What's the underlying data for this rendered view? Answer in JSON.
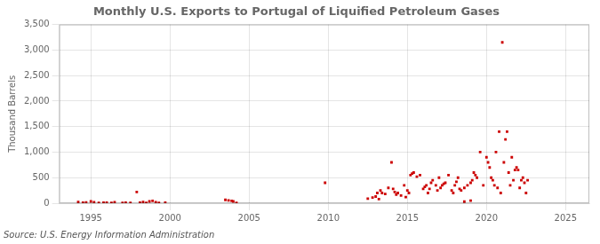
{
  "chart_data": {
    "type": "scatter",
    "title": "Monthly U.S. Exports to Portugal of Liquified Petroleum Gases",
    "ylabel": "Thousand Barrels",
    "annotation": "Source: U.S. Energy Information Administration",
    "color": "#cc0000",
    "marker": "square",
    "grid": true,
    "xlim": [
      1993.0,
      2026.5
    ],
    "xticks": [
      1995,
      2000,
      2005,
      2010,
      2015,
      2020,
      2025
    ],
    "ylim": [
      0,
      3500
    ],
    "yticks": [
      0,
      500,
      {
        "value": 1000,
        "label": "1,000"
      },
      {
        "value": 1500,
        "label": "1,500"
      },
      {
        "value": 2000,
        "label": "2,000"
      },
      {
        "value": 2500,
        "label": "2,500"
      },
      {
        "value": 3000,
        "label": "3,000"
      },
      {
        "value": 3500,
        "label": "3,500"
      }
    ],
    "x": [
      1994.2,
      1994.5,
      1994.7,
      1995.0,
      1995.2,
      1995.5,
      1995.8,
      1996.0,
      1996.3,
      1996.5,
      1997.0,
      1997.2,
      1997.5,
      1997.9,
      1998.1,
      1998.3,
      1998.5,
      1998.7,
      1998.9,
      1999.1,
      1999.3,
      1999.7,
      2003.5,
      2003.7,
      2003.9,
      2004.0,
      2004.2,
      2009.8,
      2012.5,
      2012.8,
      2013.0,
      2013.2,
      2013.4,
      2013.6,
      2013.8,
      2014.0,
      2014.2,
      2014.4,
      2014.6,
      2014.8,
      2015.0,
      2015.2,
      2015.4,
      2015.6,
      2015.8,
      2016.0,
      2016.2,
      2016.4,
      2016.6,
      2016.8,
      2017.0,
      2017.2,
      2017.4,
      2017.6,
      2017.8,
      2018.0,
      2018.2,
      2018.4,
      2018.6,
      2018.8,
      2019.0,
      2019.2,
      2019.4,
      2019.6,
      2019.8,
      2020.0,
      2020.2,
      2020.4,
      2020.6,
      2020.8,
      2021.0,
      2021.2,
      2021.4,
      2021.6,
      2021.8,
      2022.0,
      2022.2,
      2022.4,
      2022.6,
      2013.1,
      2013.3,
      2014.1,
      2014.3,
      2014.9,
      2015.1,
      2015.3,
      2016.1,
      2016.3,
      2016.5,
      2017.1,
      2017.3,
      2018.1,
      2018.3,
      2019.1,
      2019.3,
      2020.1,
      2020.3,
      2020.5,
      2021.1,
      2021.3,
      2021.5,
      2022.1,
      2022.3,
      2018.6,
      2019.0,
      2016.9,
      2017.9,
      2020.7,
      2020.9,
      2021.7,
      2021.9,
      2022.5
    ],
    "values": [
      25,
      10,
      15,
      35,
      20,
      8,
      12,
      10,
      8,
      18,
      8,
      12,
      8,
      220,
      12,
      25,
      8,
      35,
      45,
      18,
      8,
      12,
      65,
      55,
      45,
      35,
      8,
      400,
      90,
      110,
      130,
      80,
      200,
      180,
      300,
      800,
      220,
      200,
      150,
      350,
      250,
      550,
      600,
      520,
      550,
      280,
      350,
      280,
      450,
      350,
      500,
      350,
      400,
      550,
      250,
      350,
      500,
      250,
      300,
      350,
      400,
      600,
      500,
      1000,
      350,
      900,
      700,
      450,
      1000,
      1400,
      3150,
      1250,
      600,
      900,
      650,
      650,
      450,
      400,
      450,
      200,
      250,
      280,
      170,
      120,
      200,
      580,
      320,
      200,
      400,
      300,
      380,
      420,
      280,
      450,
      550,
      800,
      500,
      350,
      800,
      1400,
      350,
      300,
      500,
      30,
      50,
      250,
      200,
      300,
      200,
      450,
      700,
      200
    ]
  }
}
